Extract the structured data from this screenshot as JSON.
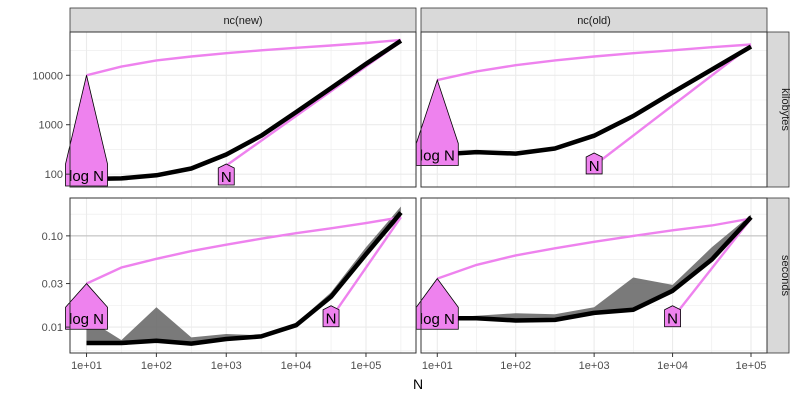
{
  "chart_data": {
    "type": "line",
    "xlabel": "N",
    "x_scale": "log10",
    "x_ticks": [
      10,
      100,
      1000,
      10000,
      100000
    ],
    "x_tick_labels": [
      "1e+01",
      "1e+02",
      "1e+03",
      "1e+04",
      "1e+05"
    ],
    "columns": [
      "nc(new)",
      "nc(old)"
    ],
    "rows": [
      "kilobytes",
      "seconds"
    ],
    "row_scales": {
      "kilobytes": {
        "scale": "log10",
        "ylim": [
          55,
          75000
        ],
        "ticks": [
          100,
          1000,
          10000
        ],
        "tick_labels": [
          "100",
          "1000",
          "10000"
        ]
      },
      "seconds": {
        "scale": "log10",
        "ylim": [
          0.0052,
          0.26
        ],
        "ticks": [
          0.01,
          0.03,
          0.1
        ],
        "tick_labels": [
          "0.01",
          "0.03",
          "0.10"
        ]
      }
    },
    "reference_lines": [
      "log N",
      "N"
    ],
    "colors": {
      "measured": "#000000",
      "band": "#6b6b6b",
      "reference": "#ee82ee",
      "panel_border": "#333333",
      "strip_fill": "#d9d9d9"
    },
    "grid": true,
    "panels": [
      {
        "column": "nc(new)",
        "row": "kilobytes",
        "x": [
          10,
          31.6,
          100,
          316,
          1000,
          3162,
          10000,
          31623,
          100000,
          316228
        ],
        "median": [
          80,
          82,
          95,
          130,
          250,
          600,
          1800,
          5500,
          17000,
          50000
        ],
        "min": [
          80,
          82,
          95,
          130,
          250,
          600,
          1800,
          5500,
          17000,
          50000
        ],
        "max": [
          80,
          82,
          95,
          130,
          250,
          600,
          1800,
          5500,
          17000,
          50000
        ],
        "log_N": [
          10000,
          15000,
          20000,
          24000,
          28000,
          32000,
          36000,
          40000,
          45000,
          52000
        ],
        "N": {
          "x": [
            1000,
            316228
          ],
          "y": [
            150,
            48000
          ]
        },
        "label_logN": {
          "text": "log N",
          "x": 10,
          "y": 80
        },
        "label_N": {
          "text": "N",
          "x": 1000,
          "y": 85
        }
      },
      {
        "column": "nc(old)",
        "row": "kilobytes",
        "x": [
          10,
          31.6,
          100,
          316,
          1000,
          3162,
          10000,
          31623,
          100000
        ],
        "median": [
          250,
          280,
          260,
          330,
          600,
          1500,
          4500,
          13000,
          38000
        ],
        "min": [
          250,
          280,
          260,
          330,
          600,
          1500,
          4500,
          13000,
          38000
        ],
        "max": [
          250,
          280,
          260,
          330,
          600,
          1500,
          4500,
          13000,
          38000
        ],
        "log_N": [
          8000,
          12000,
          16000,
          20000,
          24000,
          28000,
          32000,
          37000,
          42000
        ],
        "N": {
          "x": [
            1000,
            100000
          ],
          "y": [
            150,
            40000
          ]
        },
        "label_logN": {
          "text": "log N",
          "x": 10,
          "y": 250
        },
        "label_N": {
          "text": "N",
          "x": 1000,
          "y": 150
        }
      },
      {
        "column": "nc(new)",
        "row": "seconds",
        "x": [
          10,
          31.6,
          100,
          316,
          1000,
          3162,
          10000,
          31623,
          100000,
          316228
        ],
        "median": [
          0.0067,
          0.0067,
          0.0071,
          0.0066,
          0.0074,
          0.0079,
          0.0105,
          0.0215,
          0.063,
          0.18
        ],
        "min": [
          0.0067,
          0.0067,
          0.0069,
          0.0064,
          0.0073,
          0.0078,
          0.0103,
          0.021,
          0.06,
          0.16
        ],
        "max": [
          0.0125,
          0.0072,
          0.0165,
          0.0077,
          0.0084,
          0.0081,
          0.011,
          0.024,
          0.075,
          0.21
        ],
        "log_N": [
          0.03,
          0.045,
          0.056,
          0.068,
          0.08,
          0.093,
          0.107,
          0.121,
          0.138,
          0.16
        ],
        "N": {
          "x": [
            31623,
            316228
          ],
          "y": [
            0.0125,
            0.16
          ]
        },
        "label_logN": {
          "text": "log N",
          "x": 10,
          "y": 0.0125
        },
        "label_N": {
          "text": "N",
          "x": 31623,
          "y": 0.0125
        }
      },
      {
        "column": "nc(old)",
        "row": "seconds",
        "x": [
          10,
          31.6,
          100,
          316,
          1000,
          3162,
          10000,
          31623,
          100000
        ],
        "median": [
          0.0125,
          0.0125,
          0.0118,
          0.012,
          0.0143,
          0.0155,
          0.025,
          0.055,
          0.16
        ],
        "min": [
          0.0125,
          0.0125,
          0.0118,
          0.012,
          0.0143,
          0.0155,
          0.025,
          0.055,
          0.16
        ],
        "max": [
          0.0125,
          0.0133,
          0.0142,
          0.0138,
          0.0165,
          0.035,
          0.029,
          0.075,
          0.17
        ],
        "log_N": [
          0.034,
          0.048,
          0.061,
          0.073,
          0.086,
          0.1,
          0.115,
          0.13,
          0.155
        ],
        "N": {
          "x": [
            10000,
            100000
          ],
          "y": [
            0.0125,
            0.155
          ]
        },
        "label_logN": {
          "text": "log N",
          "x": 10,
          "y": 0.0125
        },
        "label_N": {
          "text": "N",
          "x": 10000,
          "y": 0.0125
        }
      }
    ]
  }
}
